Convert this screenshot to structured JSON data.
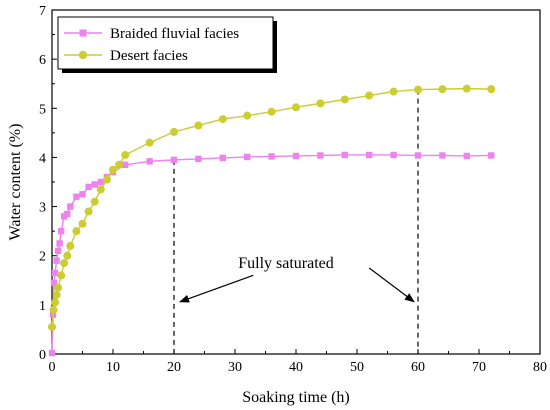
{
  "chart_data": {
    "type": "line",
    "xlabel": "Soaking time (h)",
    "ylabel": "Water content (%)",
    "xlim": [
      0,
      80
    ],
    "ylim": [
      0,
      7
    ],
    "xticks": [
      0,
      10,
      20,
      30,
      40,
      50,
      60,
      70,
      80
    ],
    "yticks": [
      0,
      1,
      2,
      3,
      4,
      5,
      6,
      7
    ],
    "grid": false,
    "legend_position": "top-left",
    "series": [
      {
        "name": "Braided fluvial facies",
        "color": "#ee82ee",
        "marker": "square",
        "x": [
          0,
          0.17,
          0.33,
          0.5,
          0.75,
          1,
          1.25,
          1.5,
          2,
          2.5,
          3,
          4,
          5,
          6,
          7,
          8,
          9,
          10,
          12,
          16,
          20,
          24,
          28,
          32,
          36,
          40,
          44,
          48,
          52,
          56,
          60,
          64,
          68,
          72
        ],
        "y": [
          0.02,
          0.8,
          1.45,
          1.65,
          1.9,
          2.1,
          2.25,
          2.5,
          2.8,
          2.85,
          3.0,
          3.2,
          3.25,
          3.4,
          3.45,
          3.5,
          3.6,
          3.7,
          3.85,
          3.92,
          3.95,
          3.97,
          3.99,
          4.01,
          4.02,
          4.03,
          4.04,
          4.05,
          4.05,
          4.05,
          4.04,
          4.04,
          4.03,
          4.04
        ]
      },
      {
        "name": "Desert facies",
        "color": "#cccc33",
        "marker": "circle",
        "x": [
          0,
          0.25,
          0.5,
          0.75,
          1,
          1.5,
          2,
          2.5,
          3,
          4,
          5,
          6,
          7,
          8,
          9,
          10,
          11,
          12,
          16,
          20,
          24,
          28,
          32,
          36,
          40,
          44,
          48,
          52,
          56,
          60,
          64,
          68,
          72
        ],
        "y": [
          0.55,
          0.9,
          1.05,
          1.2,
          1.35,
          1.6,
          1.85,
          2.0,
          2.2,
          2.5,
          2.65,
          2.9,
          3.1,
          3.35,
          3.55,
          3.75,
          3.85,
          4.05,
          4.3,
          4.52,
          4.65,
          4.78,
          4.85,
          4.93,
          5.02,
          5.1,
          5.18,
          5.26,
          5.34,
          5.38,
          5.39,
          5.4,
          5.39
        ]
      }
    ],
    "reference_lines_x": [
      20,
      60
    ],
    "annotations": [
      {
        "text": "Fully saturated",
        "x": 40,
        "y": 1.75,
        "arrows_to": [
          [
            20,
            0.9
          ],
          [
            60,
            0.9
          ]
        ]
      }
    ]
  }
}
